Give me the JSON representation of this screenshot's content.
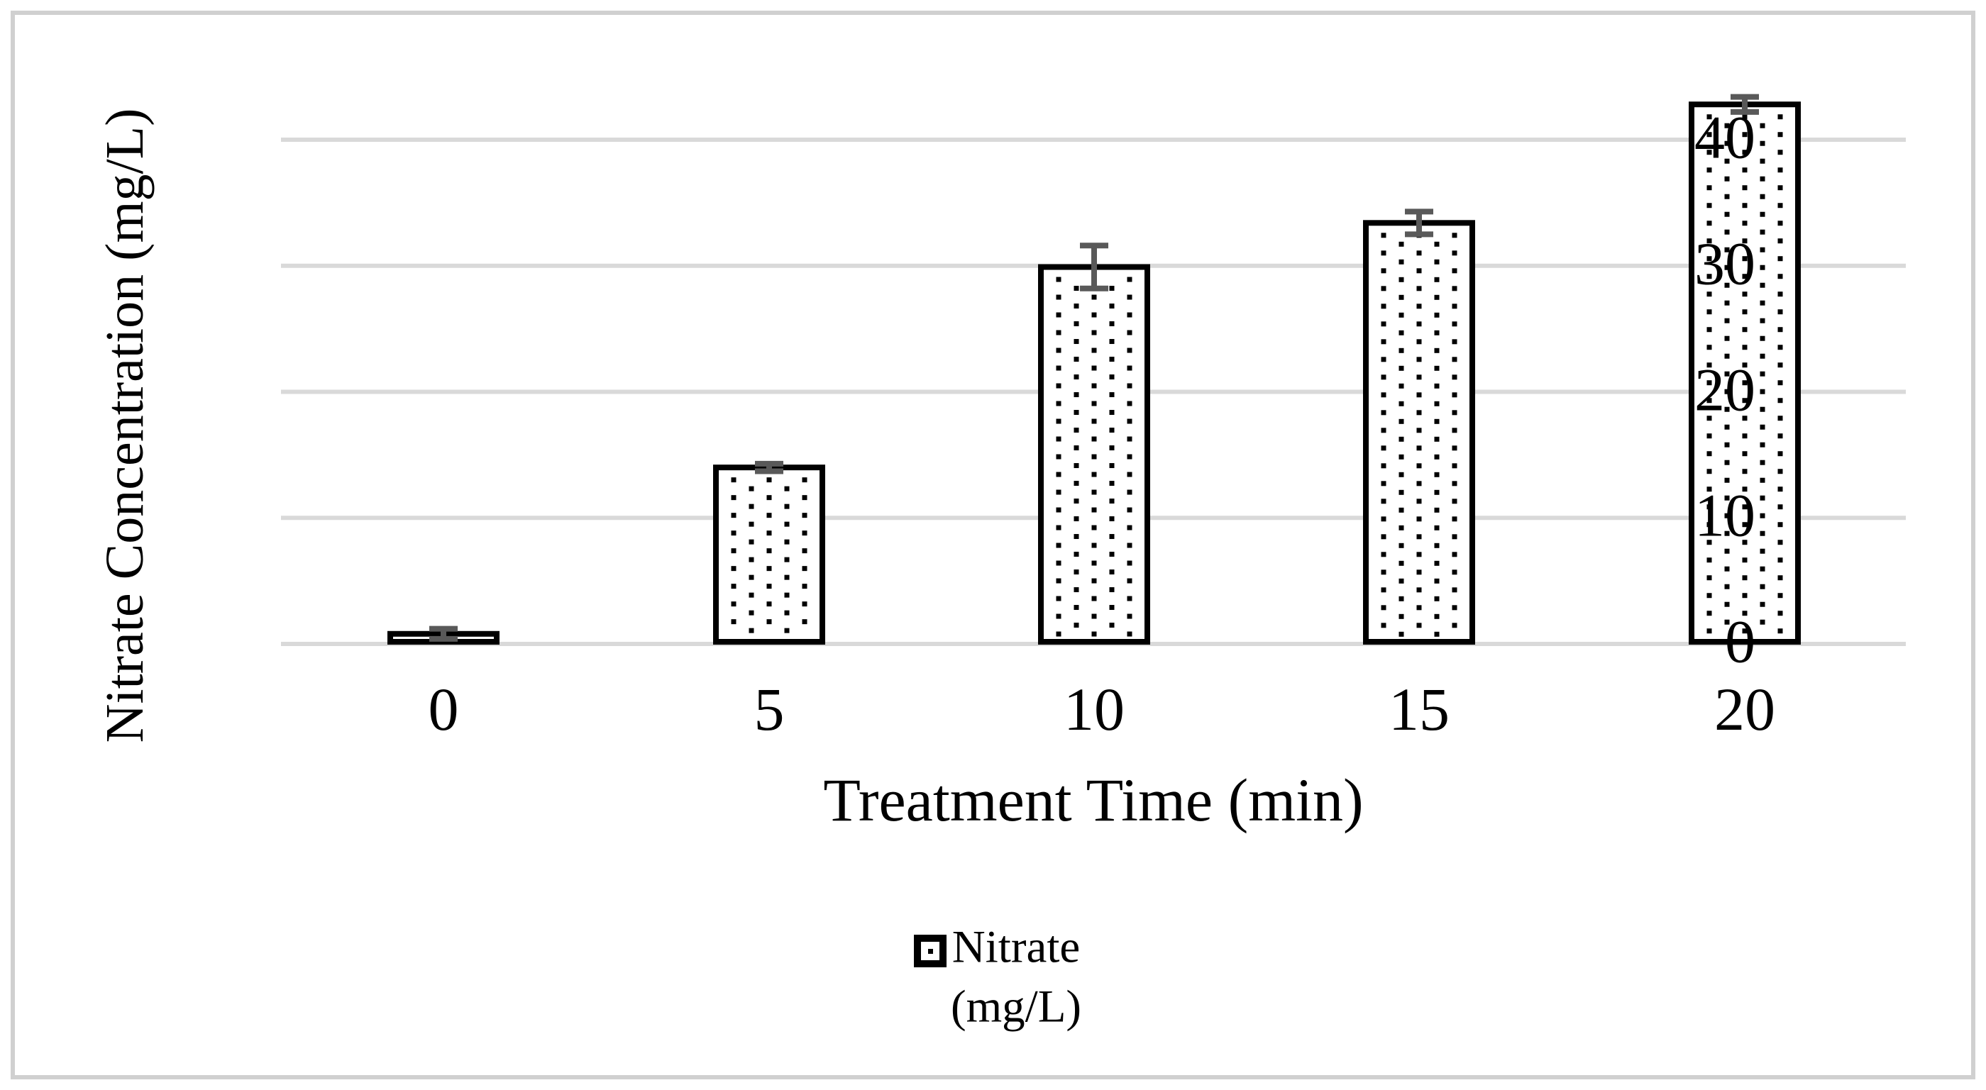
{
  "chart_data": {
    "type": "bar",
    "title": "",
    "xlabel": "Treatment Time (min)",
    "ylabel": "Nitrate Concentration (mg/L)",
    "categories": [
      "0",
      "5",
      "10",
      "15",
      "20"
    ],
    "series": [
      {
        "name": "Nitrate (mg/L)",
        "values": [
          0.8,
          14.0,
          29.9,
          33.4,
          42.8
        ],
        "errors": [
          0.4,
          0.3,
          1.7,
          0.9,
          0.6
        ],
        "fill_pattern": "dotted",
        "fill_color": "#ffffff",
        "dot_color": "#000000",
        "outline_color": "#000000"
      }
    ],
    "yticks": [
      0,
      10,
      20,
      30,
      40
    ],
    "ylim": [
      0,
      45
    ],
    "grid": "horizontal",
    "gridline_color": "#d9d9d9",
    "error_bar_color": "#595959",
    "border_color": "#d0d0d0",
    "legend_position": "bottom",
    "legend": {
      "line1": "Nitrate",
      "line2": "(mg/L)"
    }
  }
}
